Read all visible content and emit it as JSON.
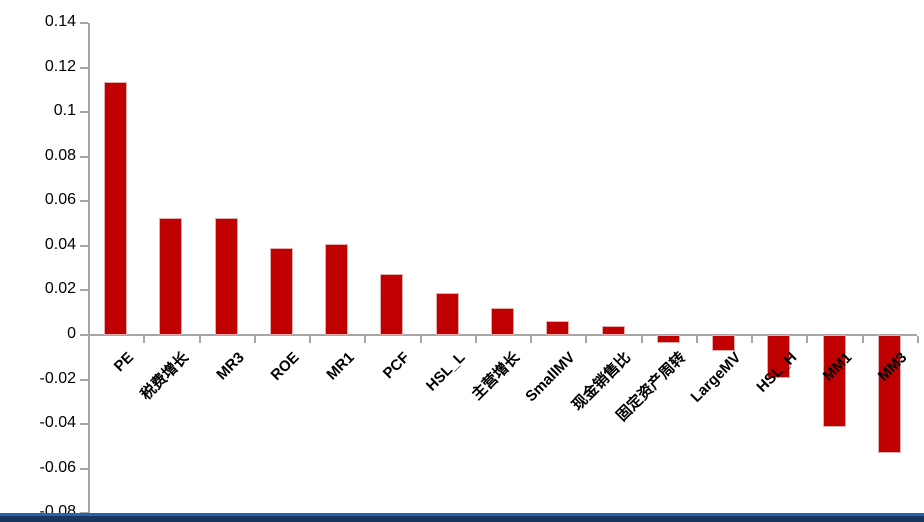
{
  "chart_data": {
    "type": "bar",
    "title": "",
    "xlabel": "",
    "ylabel": "",
    "categories": [
      "PE",
      "税费增长",
      "MR3",
      "ROE",
      "MR1",
      "PCF",
      "HSL_L",
      "主营增长",
      "SmallMV",
      "现金销售比",
      "固定资产周转",
      "LargeMV",
      "HSL_H",
      "MM1",
      "MM3"
    ],
    "values": [
      0.1135,
      0.0525,
      0.0525,
      0.039,
      0.041,
      0.0275,
      0.019,
      0.012,
      0.0065,
      0.0042,
      -0.0038,
      -0.0072,
      -0.0192,
      -0.0413,
      -0.0528
    ],
    "ylim": [
      -0.08,
      0.14
    ],
    "ytick_step": 0.02,
    "ytick_labels": [
      "0.14",
      "0.12",
      "0.1",
      "0.08",
      "0.06",
      "0.04",
      "0.02",
      "0",
      "-0.02",
      "-0.04",
      "-0.06",
      "-0.08"
    ],
    "ytick_values": [
      0.14,
      0.12,
      0.1,
      0.08,
      0.06,
      0.04,
      0.02,
      0,
      -0.02,
      -0.04,
      -0.06,
      -0.08
    ],
    "grid": false,
    "legend": false,
    "bar_color": "#c00000",
    "bar_border_color": "#e2aeae",
    "axis_color": "#a6a6a6",
    "tick_label_color": "#000000"
  },
  "footer": {
    "divider_color_top": "#2366ae",
    "divider_color_bottom": "#17375e"
  }
}
